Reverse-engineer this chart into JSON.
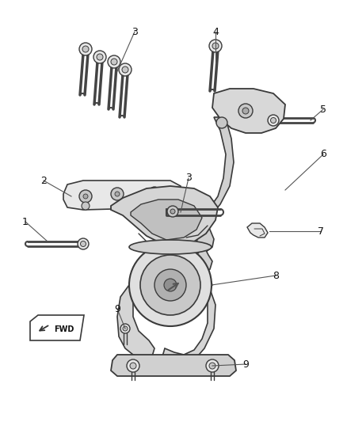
{
  "background_color": "#ffffff",
  "figsize": [
    4.38,
    5.33
  ],
  "dpi": 100,
  "edge_color": "#3a3a3a",
  "fill_light": "#e8e8e8",
  "fill_mid": "#c8c8c8",
  "fill_dark": "#aaaaaa",
  "line_color": "#444444",
  "label_color": "#111111",
  "label_fontsize": 9
}
